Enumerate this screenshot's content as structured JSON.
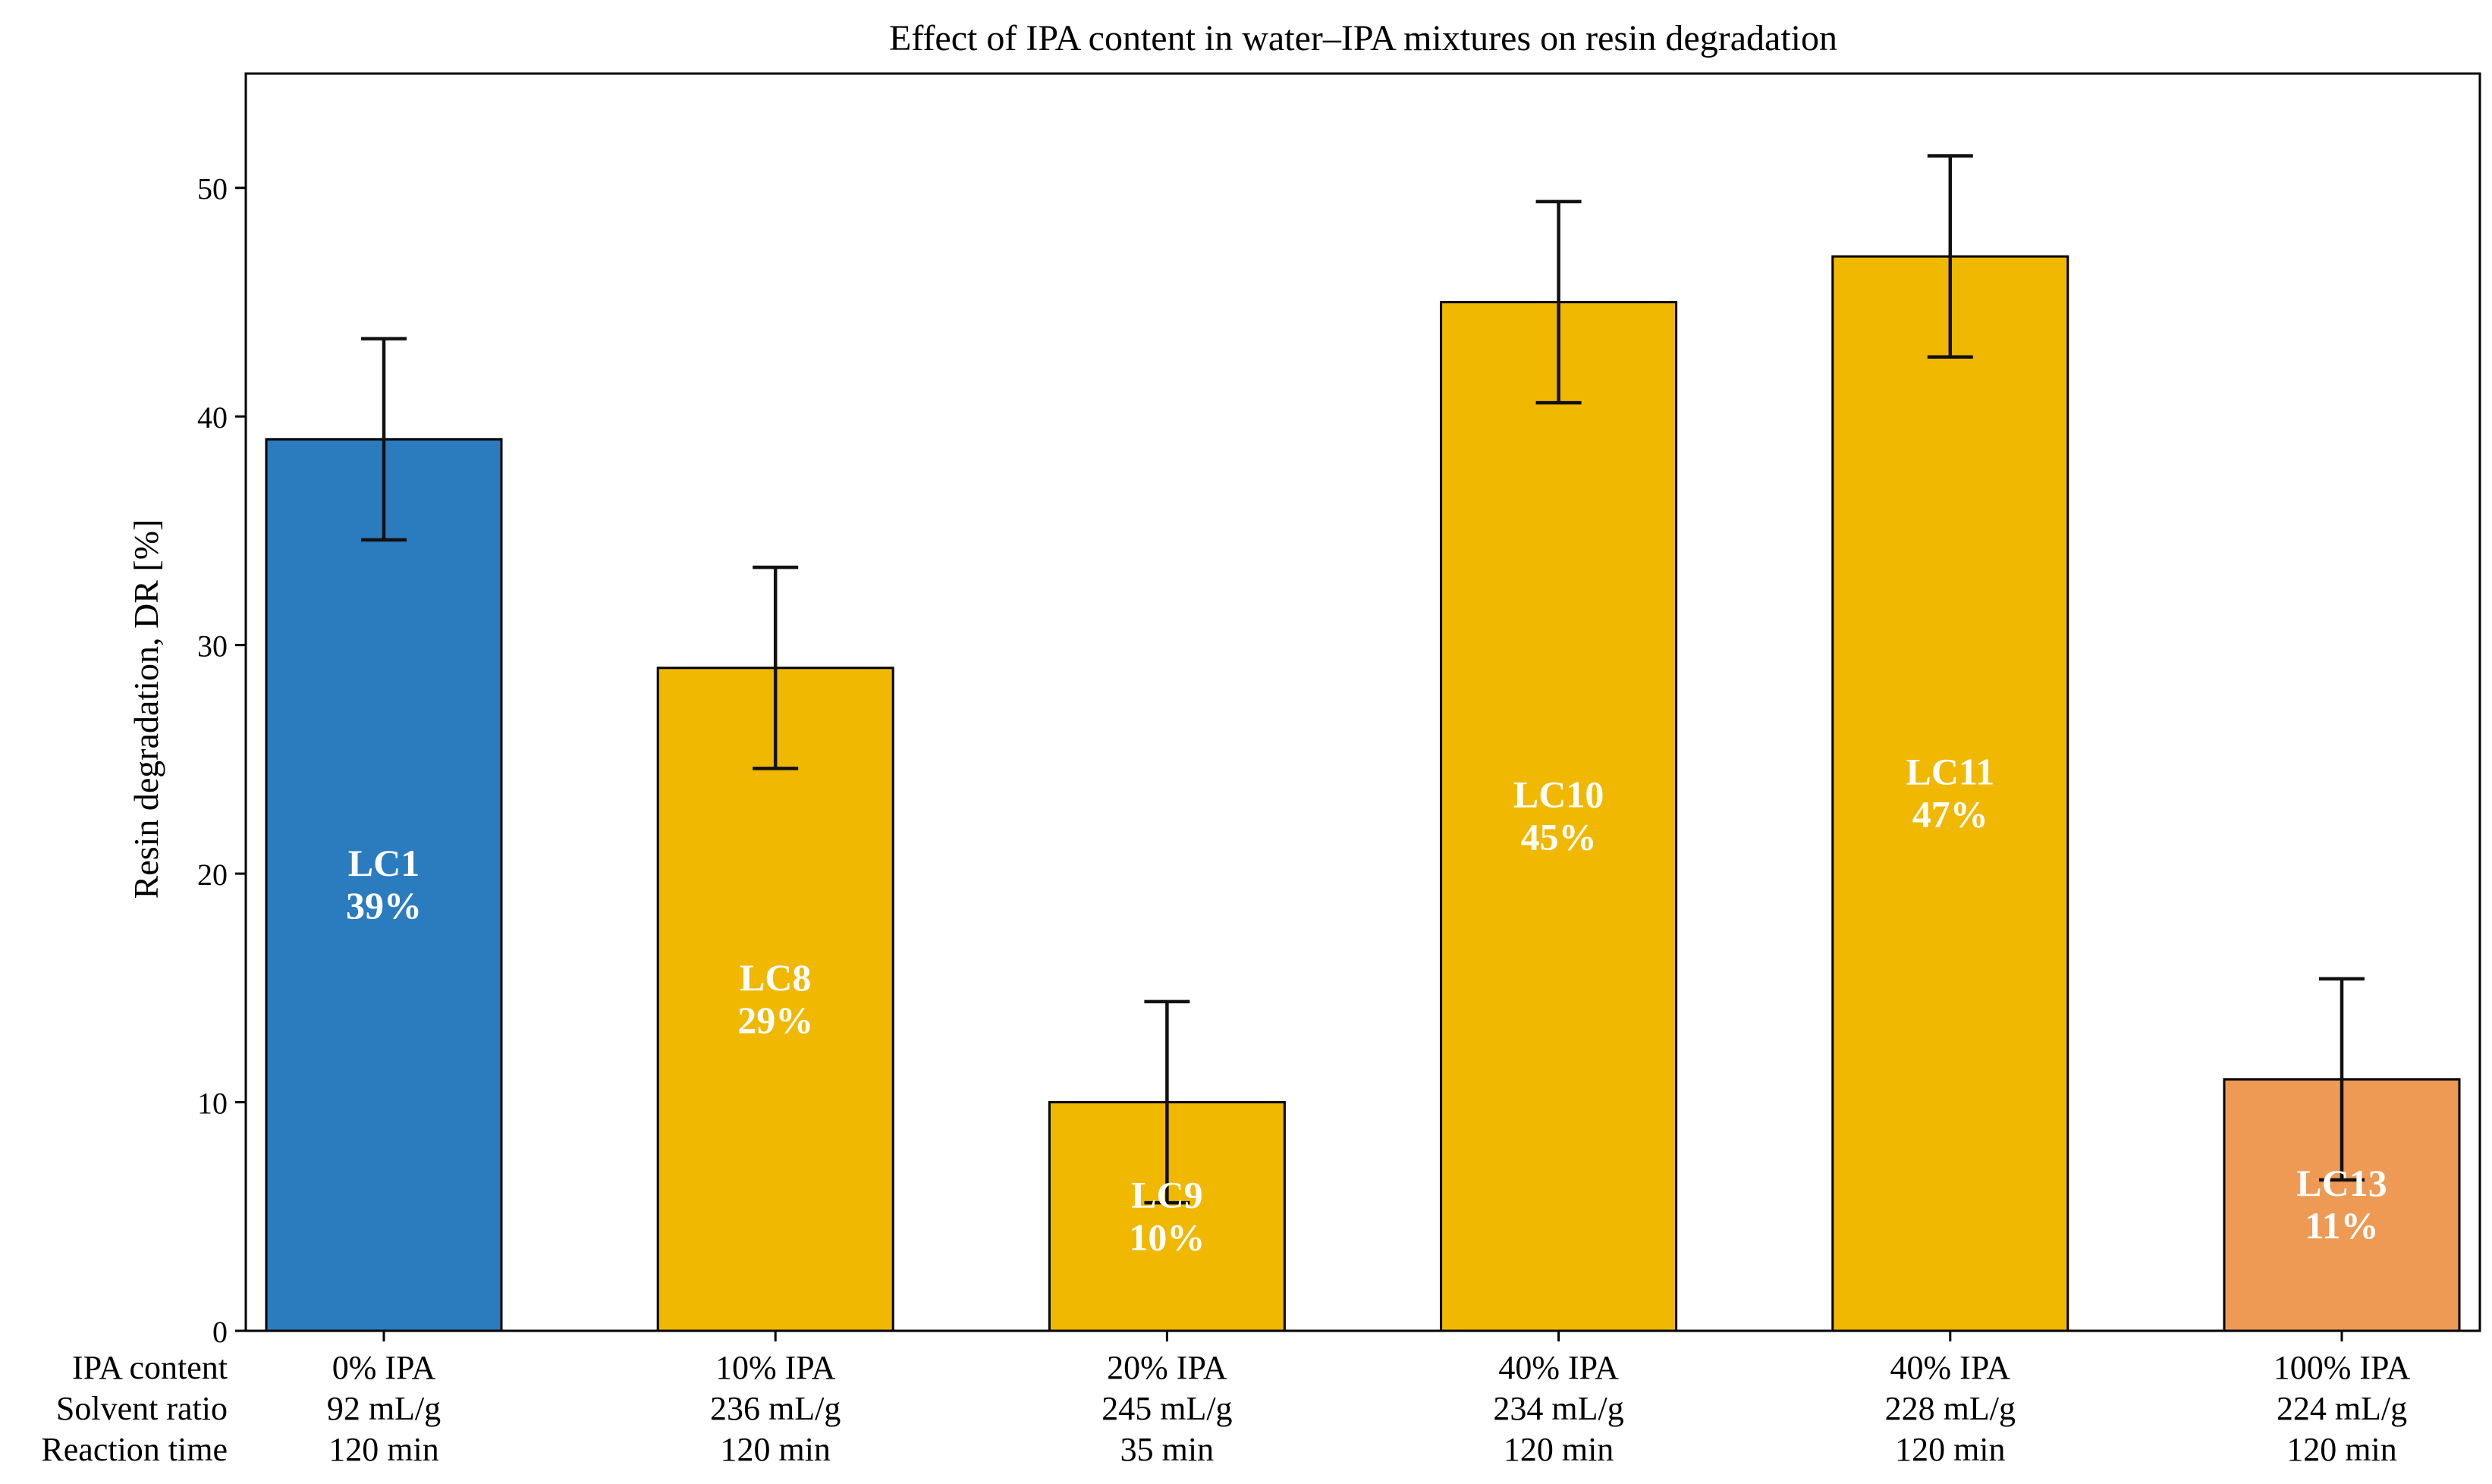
{
  "chart_data": {
    "type": "bar",
    "title": "Effect of IPA content in water–IPA mixtures on resin degradation",
    "xlabel": "",
    "ylabel": "Resin degradation, DR [%]",
    "ylim": [
      0,
      55
    ],
    "yticks": [
      0,
      10,
      20,
      30,
      40,
      50
    ],
    "grid": false,
    "row_labels": [
      "IPA content",
      "Solvent ratio",
      "Reaction time"
    ],
    "bars": [
      {
        "id": "LC1",
        "value": 39,
        "error": 4.4,
        "label_value": "39%",
        "color": "#2b7bbf",
        "ipa": "0% IPA",
        "ratio": "92 mL/g",
        "time": "120 min"
      },
      {
        "id": "LC8",
        "value": 29,
        "error": 4.4,
        "label_value": "29%",
        "color": "#f0b800",
        "ipa": "10% IPA",
        "ratio": "236 mL/g",
        "time": "120 min"
      },
      {
        "id": "LC9",
        "value": 10,
        "error": 4.4,
        "label_value": "10%",
        "color": "#f0b800",
        "ipa": "20% IPA",
        "ratio": "245 mL/g",
        "time": "35 min"
      },
      {
        "id": "LC10",
        "value": 45,
        "error": 4.4,
        "label_value": "45%",
        "color": "#f0b800",
        "ipa": "40% IPA",
        "ratio": "234 mL/g",
        "time": "120 min"
      },
      {
        "id": "LC11",
        "value": 47,
        "error": 4.4,
        "label_value": "47%",
        "color": "#f0b800",
        "ipa": "40% IPA",
        "ratio": "228 mL/g",
        "time": "120 min"
      },
      {
        "id": "LC13",
        "value": 11,
        "error": 4.4,
        "label_value": "11%",
        "color": "#ee9a55",
        "ipa": "100% IPA",
        "ratio": "224 mL/g",
        "time": "120 min"
      }
    ]
  }
}
